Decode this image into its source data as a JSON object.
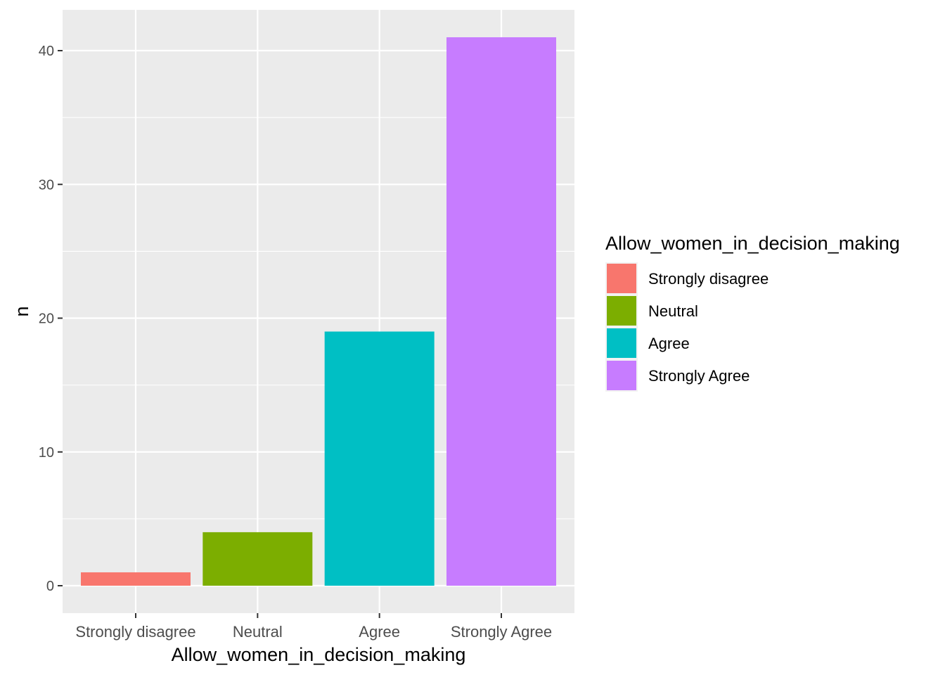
{
  "chart_data": {
    "type": "bar",
    "categories": [
      "Strongly disagree",
      "Neutral",
      "Agree",
      "Strongly Agree"
    ],
    "values": [
      1,
      4,
      19,
      41
    ],
    "colors": [
      "#F8766D",
      "#7CAE00",
      "#00BFC4",
      "#C77CFF"
    ],
    "xlabel": "Allow_women_in_decision_making",
    "ylabel": "n",
    "ylim": [
      -2.05,
      43.05
    ],
    "yticks": [
      0,
      10,
      20,
      30,
      40
    ],
    "yticks_minor": [
      5,
      15,
      25,
      35
    ],
    "grid": true,
    "legend": {
      "title": "Allow_women_in_decision_making",
      "placement": "right",
      "entries": [
        "Strongly disagree",
        "Neutral",
        "Agree",
        "Strongly Agree"
      ]
    },
    "panel_background": "#EBEBEB",
    "grid_color": "#FFFFFF"
  }
}
